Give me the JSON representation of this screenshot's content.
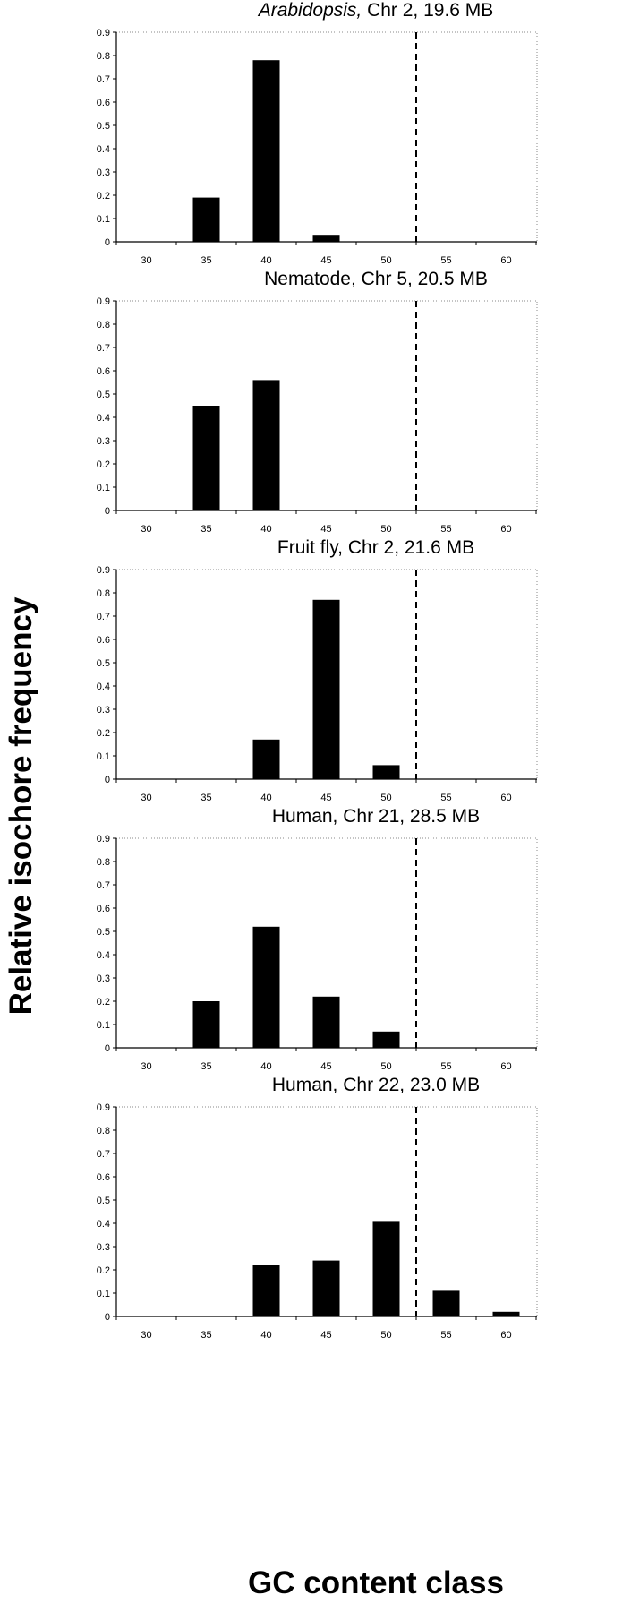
{
  "ylabel": "Relative isochore frequency",
  "xlabel": "GC content class",
  "chart_data": [
    {
      "type": "bar",
      "title_italic": "Arabidopsis,",
      "title_rest": " Chr 2, 19.6 MB",
      "categories": [
        "30",
        "35",
        "40",
        "45",
        "50",
        "55",
        "60"
      ],
      "values": [
        0,
        0.19,
        0.78,
        0.03,
        0,
        0,
        0
      ],
      "yticks": [
        "0",
        "0.1",
        "0.2",
        "0.3",
        "0.4",
        "0.5",
        "0.6",
        "0.7",
        "0.8",
        "0.9"
      ],
      "ylim": [
        0,
        0.9
      ],
      "threshold_x": 52.5,
      "grid": false
    },
    {
      "type": "bar",
      "title_italic": "",
      "title_rest": "Nematode, Chr 5, 20.5 MB",
      "categories": [
        "30",
        "35",
        "40",
        "45",
        "50",
        "55",
        "60"
      ],
      "values": [
        0,
        0.45,
        0.56,
        0,
        0,
        0,
        0
      ],
      "yticks": [
        "0",
        "0.1",
        "0.2",
        "0.3",
        "0.4",
        "0.5",
        "0.6",
        "0.7",
        "0.8",
        "0.9"
      ],
      "ylim": [
        0,
        0.9
      ],
      "threshold_x": 52.5,
      "grid": false
    },
    {
      "type": "bar",
      "title_italic": "",
      "title_rest": "Fruit fly, Chr 2, 21.6 MB",
      "categories": [
        "30",
        "35",
        "40",
        "45",
        "50",
        "55",
        "60"
      ],
      "values": [
        0,
        0,
        0.17,
        0.77,
        0.06,
        0,
        0
      ],
      "yticks": [
        "0",
        "0.1",
        "0.2",
        "0.3",
        "0.4",
        "0.5",
        "0.6",
        "0.7",
        "0.8",
        "0.9"
      ],
      "ylim": [
        0,
        0.9
      ],
      "threshold_x": 52.5,
      "grid": false
    },
    {
      "type": "bar",
      "title_italic": "",
      "title_rest": "Human, Chr 21, 28.5 MB",
      "categories": [
        "30",
        "35",
        "40",
        "45",
        "50",
        "55",
        "60"
      ],
      "values": [
        0,
        0.2,
        0.52,
        0.22,
        0.07,
        0,
        0
      ],
      "yticks": [
        "0",
        "0.1",
        "0.2",
        "0.3",
        "0.4",
        "0.5",
        "0.6",
        "0.7",
        "0.8",
        "0.9"
      ],
      "ylim": [
        0,
        0.9
      ],
      "threshold_x": 52.5,
      "grid": false
    },
    {
      "type": "bar",
      "title_italic": "",
      "title_rest": "Human, Chr 22, 23.0 MB",
      "categories": [
        "30",
        "35",
        "40",
        "45",
        "50",
        "55",
        "60"
      ],
      "values": [
        0,
        0,
        0.22,
        0.24,
        0.41,
        0.11,
        0.02
      ],
      "yticks": [
        "0",
        "0.1",
        "0.2",
        "0.3",
        "0.4",
        "0.5",
        "0.6",
        "0.7",
        "0.8",
        "0.9"
      ],
      "ylim": [
        0,
        0.9
      ],
      "threshold_x": 52.5,
      "grid": false
    }
  ]
}
